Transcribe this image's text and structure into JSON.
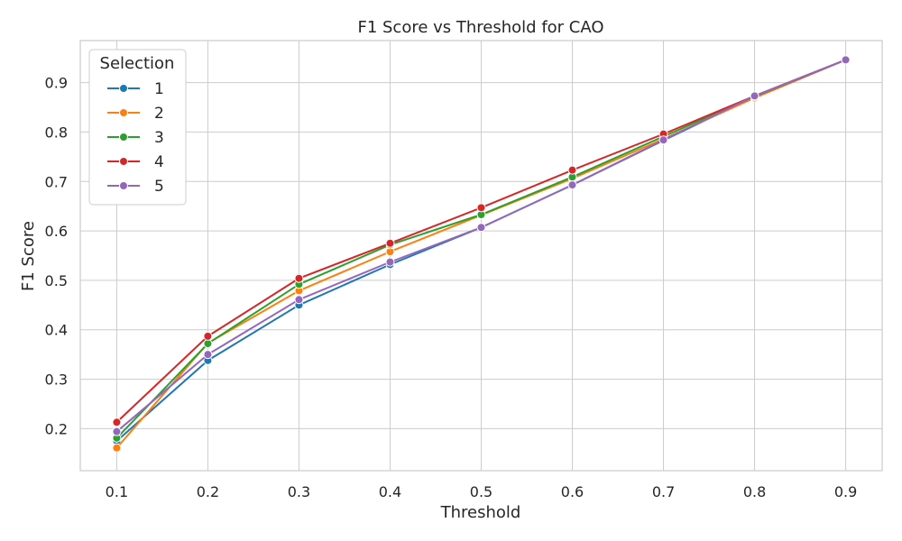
{
  "chart_data": {
    "type": "line",
    "title": "F1 Score vs Threshold for CAO",
    "xlabel": "Threshold",
    "ylabel": "F1 Score",
    "xlim": [
      0.06,
      0.94
    ],
    "ylim": [
      0.115,
      0.985
    ],
    "xticks": [
      "0.1",
      "0.2",
      "0.3",
      "0.4",
      "0.5",
      "0.6",
      "0.7",
      "0.8",
      "0.9"
    ],
    "yticks": [
      "0.2",
      "0.3",
      "0.4",
      "0.5",
      "0.6",
      "0.7",
      "0.8",
      "0.9"
    ],
    "x": [
      0.1,
      0.2,
      0.3,
      0.4,
      0.5,
      0.6,
      0.7,
      0.8,
      0.9
    ],
    "grid": true,
    "legend": {
      "title": "Selection",
      "placement": "top-left"
    },
    "series": [
      {
        "name": "1",
        "color": "#1f77b4",
        "values": [
          0.175,
          0.338,
          0.45,
          0.532,
          0.607,
          0.693,
          0.783,
          0.872,
          0.946
        ]
      },
      {
        "name": "2",
        "color": "#ff7f0e",
        "values": [
          0.161,
          0.373,
          0.479,
          0.558,
          0.632,
          0.706,
          0.786,
          0.869,
          0.946
        ]
      },
      {
        "name": "3",
        "color": "#2ca02c",
        "values": [
          0.181,
          0.372,
          0.492,
          0.572,
          0.633,
          0.709,
          0.791,
          0.872,
          0.946
        ]
      },
      {
        "name": "4",
        "color": "#d62728",
        "values": [
          0.213,
          0.387,
          0.504,
          0.575,
          0.647,
          0.723,
          0.796,
          0.873,
          0.946
        ]
      },
      {
        "name": "5",
        "color": "#9467bd",
        "values": [
          0.194,
          0.35,
          0.461,
          0.537,
          0.607,
          0.693,
          0.784,
          0.873,
          0.946
        ]
      }
    ]
  }
}
